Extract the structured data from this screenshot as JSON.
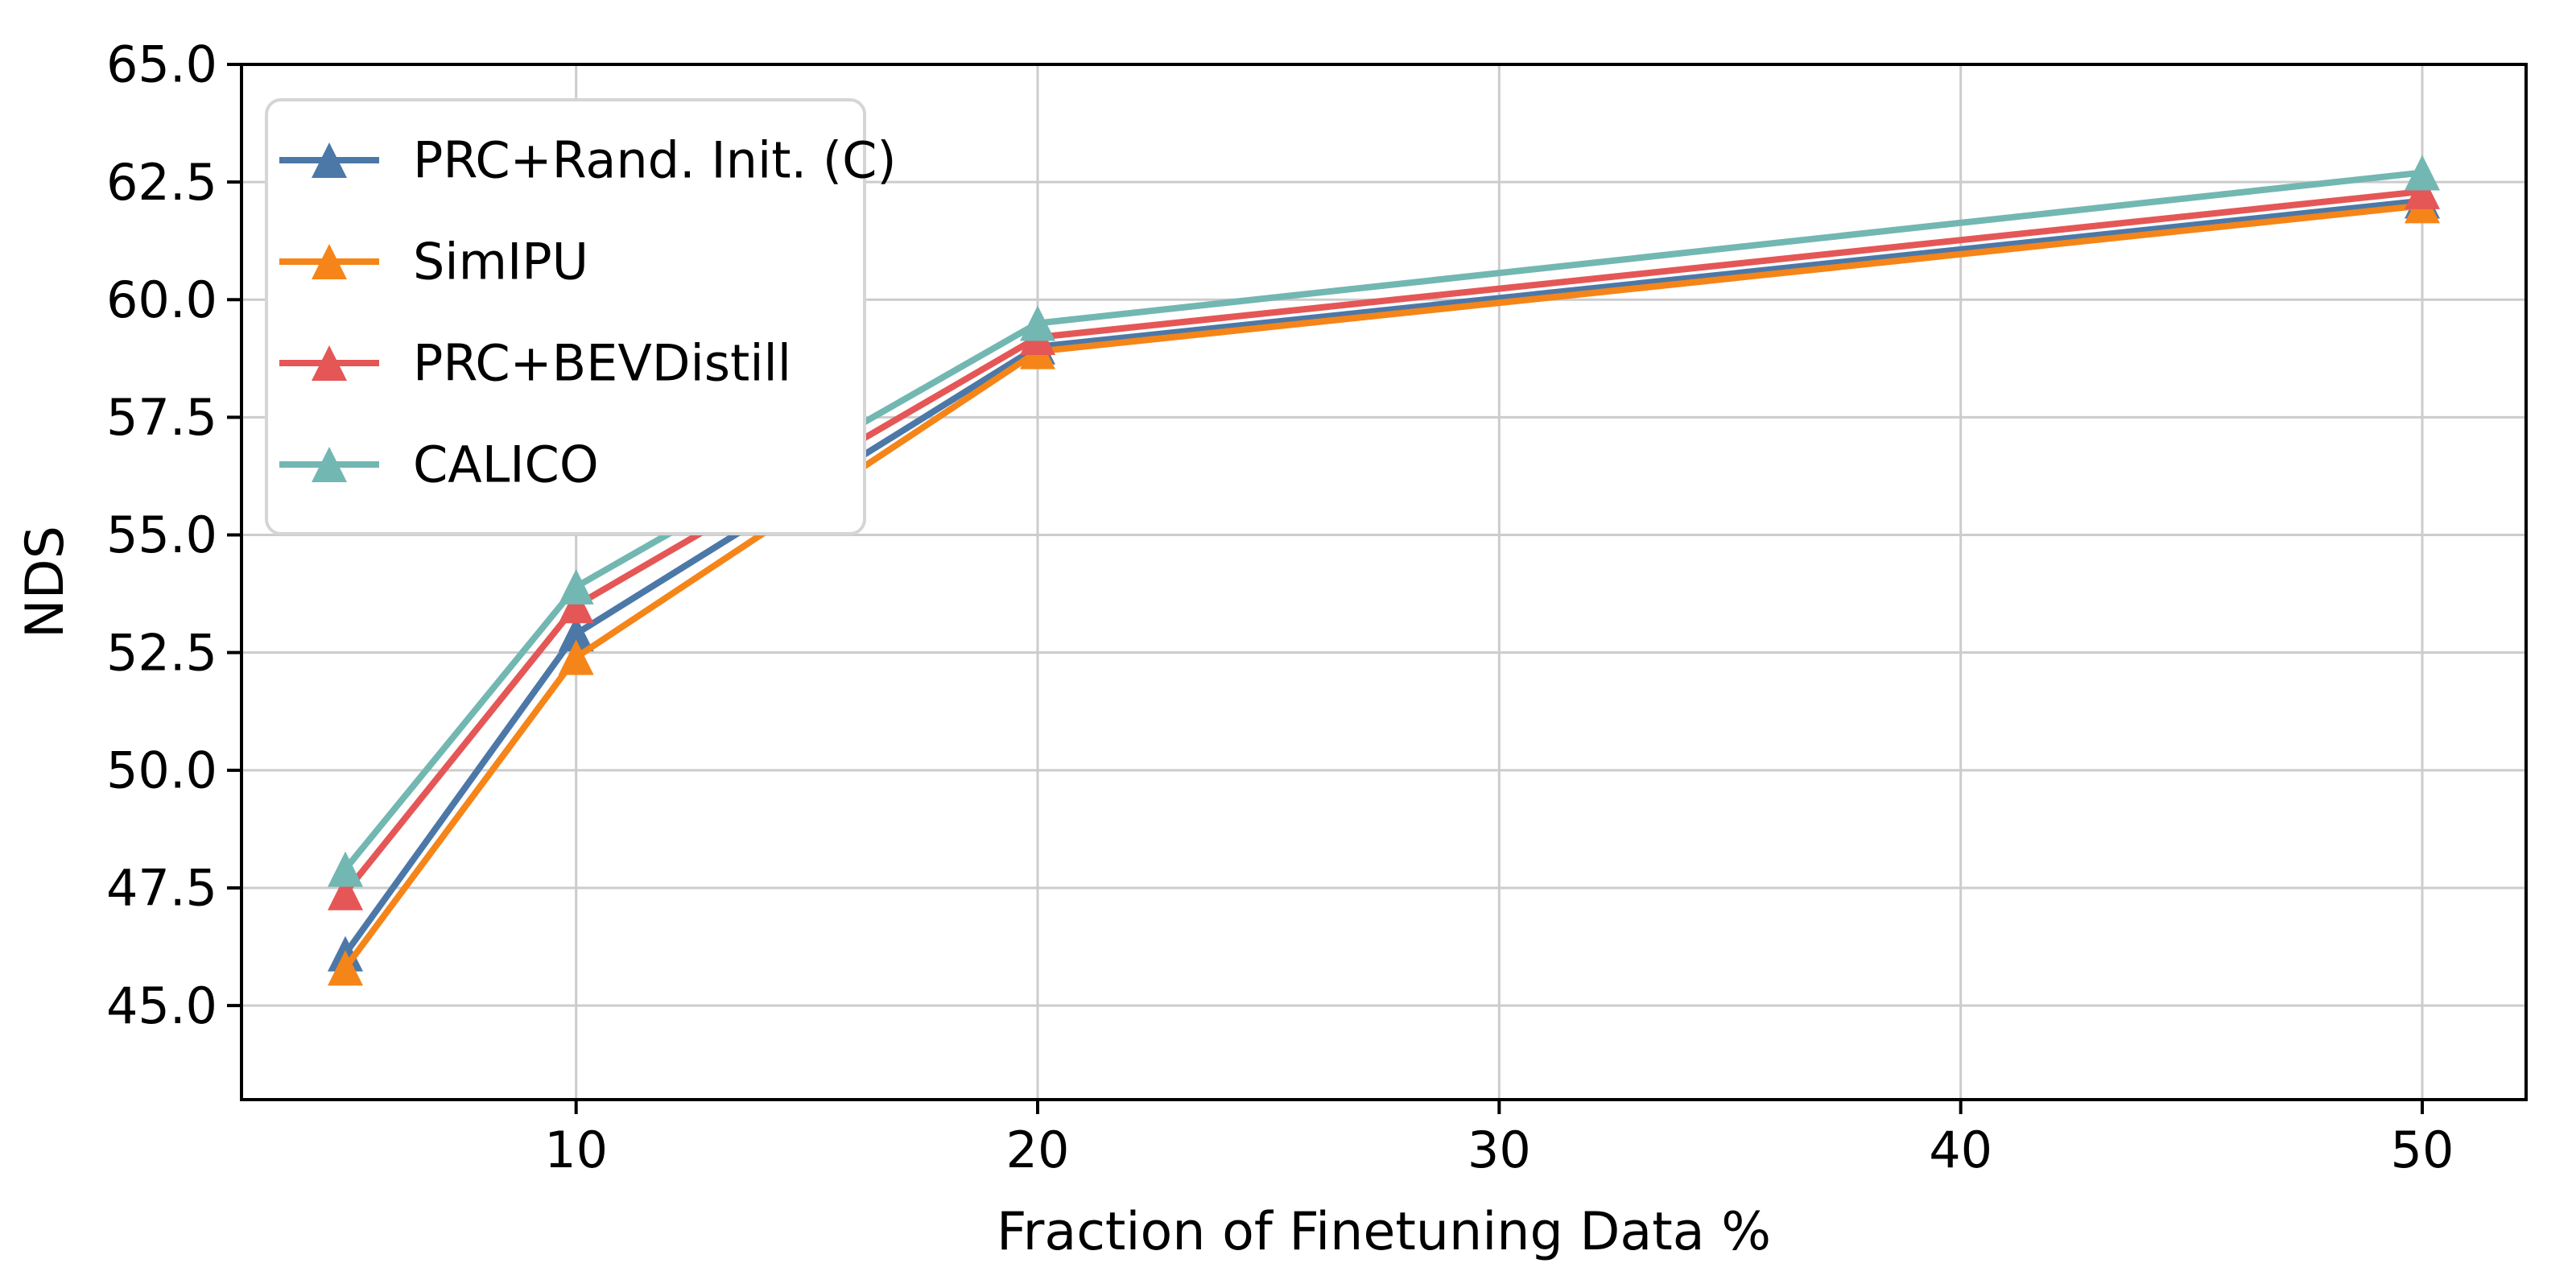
{
  "figure": {
    "background": "#ffffff",
    "text_color": "#000000",
    "grid_color": "#cccccc",
    "spine_color": "#000000",
    "legend_border_color": "#d5d5d5",
    "legend_background": "#ffffff"
  },
  "chart_data": {
    "type": "line",
    "title": "",
    "xlabel": "Fraction of Finetuning Data %",
    "ylabel": "NDS",
    "x": [
      5,
      10,
      20,
      50
    ],
    "series": [
      {
        "name": "PRC+Rand. Init. (C)",
        "color": "#4C78A8",
        "marker": "triangle-up",
        "values": [
          46.1,
          52.9,
          59.0,
          62.1
        ]
      },
      {
        "name": "SimIPU",
        "color": "#F58518",
        "marker": "triangle-up",
        "values": [
          45.8,
          52.4,
          58.9,
          62.0
        ]
      },
      {
        "name": "PRC+BEVDistill",
        "color": "#E45756",
        "marker": "triangle-up",
        "values": [
          47.4,
          53.5,
          59.2,
          62.3
        ]
      },
      {
        "name": "CALICO",
        "color": "#72B7B2",
        "marker": "triangle-up",
        "values": [
          47.9,
          53.9,
          59.5,
          62.7
        ]
      }
    ],
    "xlim": [
      2.75,
      52.25
    ],
    "ylim": [
      43,
      65
    ],
    "xticks": [
      10,
      20,
      30,
      40,
      50
    ],
    "yticks": [
      45,
      47.5,
      50,
      52.5,
      55,
      57.5,
      60,
      62.5,
      65
    ],
    "ytick_decimals": 1,
    "grid": true,
    "legend_position": "upper left",
    "legend_entries": [
      "PRC+Rand. Init. (C)",
      "SimIPU",
      "PRC+BEVDistill",
      "CALICO"
    ]
  }
}
